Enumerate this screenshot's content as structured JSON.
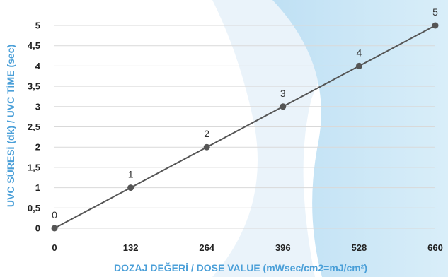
{
  "chart_data": {
    "type": "line",
    "title": "",
    "xlabel": "DOZAJ DEĞERİ / DOSE VALUE (mWsec/cm2=mJ/cm²)",
    "ylabel": "UVC SÜRESİ (dk) / UVC TİME (sec)",
    "x_ticks": [
      "0",
      "132",
      "264",
      "396",
      "528",
      "660"
    ],
    "y_ticks": [
      "0",
      "0,5",
      "1",
      "1,5",
      "2",
      "2,5",
      "3",
      "3,5",
      "4",
      "4,5",
      "5"
    ],
    "xlim": [
      0,
      660
    ],
    "ylim": [
      0,
      5
    ],
    "grid": "horizontal",
    "series": [
      {
        "x": [
          0,
          132,
          264,
          396,
          528,
          660
        ],
        "y": [
          0,
          1,
          2,
          3,
          4,
          5
        ],
        "labels": [
          "0",
          "1",
          "2",
          "3",
          "4",
          "5"
        ]
      }
    ],
    "colors": {
      "line": "#555555",
      "marker": "#555555",
      "gridline": "#d9d9d9",
      "axis_title": "#4a9fd8",
      "background_accent": "#cfe8f7"
    }
  }
}
